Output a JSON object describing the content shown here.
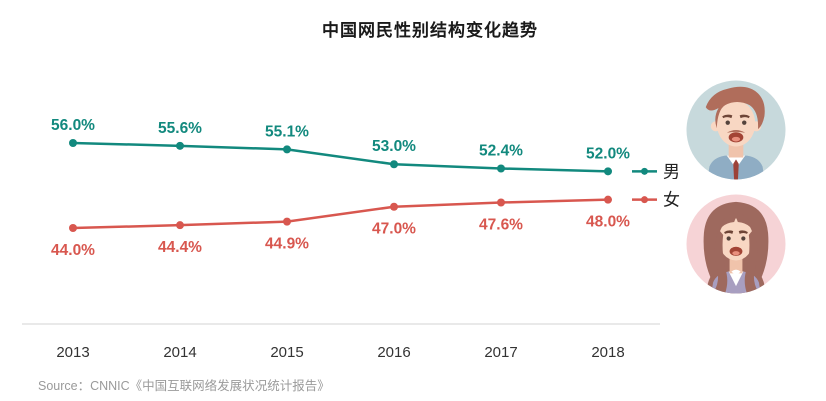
{
  "page": {
    "title": "中国网民性别结构变化趋势",
    "source": "Source：CNNIC《中国互联网络发展状况统计报告》"
  },
  "chart_data": {
    "type": "line",
    "title": "中国网民性别结构变化趋势",
    "categories": [
      "2013",
      "2014",
      "2015",
      "2016",
      "2017",
      "2018"
    ],
    "series": [
      {
        "name": "男",
        "color": "#12897E",
        "values": [
          56.0,
          55.6,
          55.1,
          53.0,
          52.4,
          52.0
        ],
        "data_labels": [
          "56.0%",
          "55.6%",
          "55.1%",
          "53.0%",
          "52.4%",
          "52.0%"
        ],
        "label_position": "above"
      },
      {
        "name": "女",
        "color": "#D8574F",
        "values": [
          44.0,
          44.4,
          44.9,
          47.0,
          47.6,
          48.0
        ],
        "data_labels": [
          "44.0%",
          "44.4%",
          "44.9%",
          "47.0%",
          "47.6%",
          "48.0%"
        ],
        "label_position": "below"
      }
    ],
    "ylim": [
      40,
      60
    ],
    "grid": false,
    "legend_position": "right-of-line-ends",
    "xlabel": "",
    "ylabel": "",
    "x_axis_line_color": "#e9e9e9",
    "x_tick_color": "#333333",
    "legend_text_color": "#222222"
  },
  "avatars": {
    "male": {
      "name": "male-avatar",
      "bg": "#c7d9dc"
    },
    "female": {
      "name": "female-avatar",
      "bg": "#f6d3d6"
    }
  }
}
